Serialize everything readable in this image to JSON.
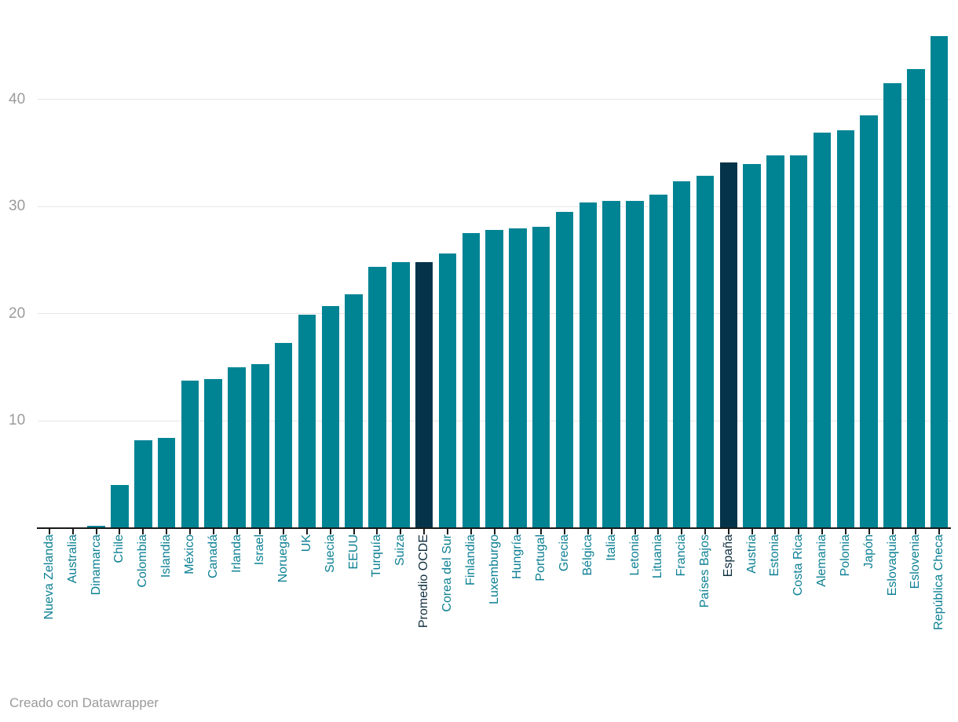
{
  "footer": {
    "text": "Creado con Datawrapper"
  },
  "chart_data": {
    "type": "bar",
    "title": "",
    "xlabel": "",
    "ylabel": "",
    "legend": "none",
    "grid": "horizontal",
    "yticks": [
      10,
      20,
      30,
      40
    ],
    "ylim": [
      0,
      47.3
    ],
    "categories": [
      "Nueva Zelanda",
      "Australia",
      "Dinamarca",
      "Chile",
      "Colombia",
      "Islandia",
      "México",
      "Canadá",
      "Irlanda",
      "Israel",
      "Noruega",
      "UK",
      "Suecia",
      "EEUU",
      "Turquía",
      "Suiza",
      "Promedio OCDE",
      "Corea del Sur",
      "Finlandia",
      "Luxemburgo",
      "Hungría",
      "Portugal",
      "Grecia",
      "Bélgica",
      "Italia",
      "Letonia",
      "Lituania",
      "Francia",
      "Países Bajos",
      "España",
      "Austria",
      "Estonia",
      "Costa Rica",
      "Alemania",
      "Polonia",
      "Japón",
      "Eslovaquia",
      "Eslovenia",
      "República Checa"
    ],
    "values": [
      0,
      0,
      0.2,
      4.0,
      8.2,
      8.4,
      13.8,
      13.9,
      15.0,
      15.3,
      17.3,
      19.9,
      20.7,
      21.8,
      24.4,
      24.8,
      24.8,
      25.6,
      27.5,
      27.8,
      28.0,
      28.1,
      29.5,
      30.4,
      30.5,
      30.5,
      31.1,
      32.4,
      32.9,
      34.1,
      34.0,
      34.8,
      34.8,
      36.9,
      37.1,
      38.5,
      41.5,
      42.8,
      45.9
    ],
    "highlighted_categories": [
      "Promedio OCDE",
      "España"
    ],
    "colors": {
      "bar": "#008494",
      "bar_highlight": "#05344a",
      "label": "#0b7f93",
      "label_highlight": "#0e2e3f",
      "gridline": "#e6e6e6",
      "axis_line": "#191919",
      "ytick_text": "#9b9b9b",
      "footer_text": "#9a9a9a",
      "background": "#ffffff"
    }
  }
}
